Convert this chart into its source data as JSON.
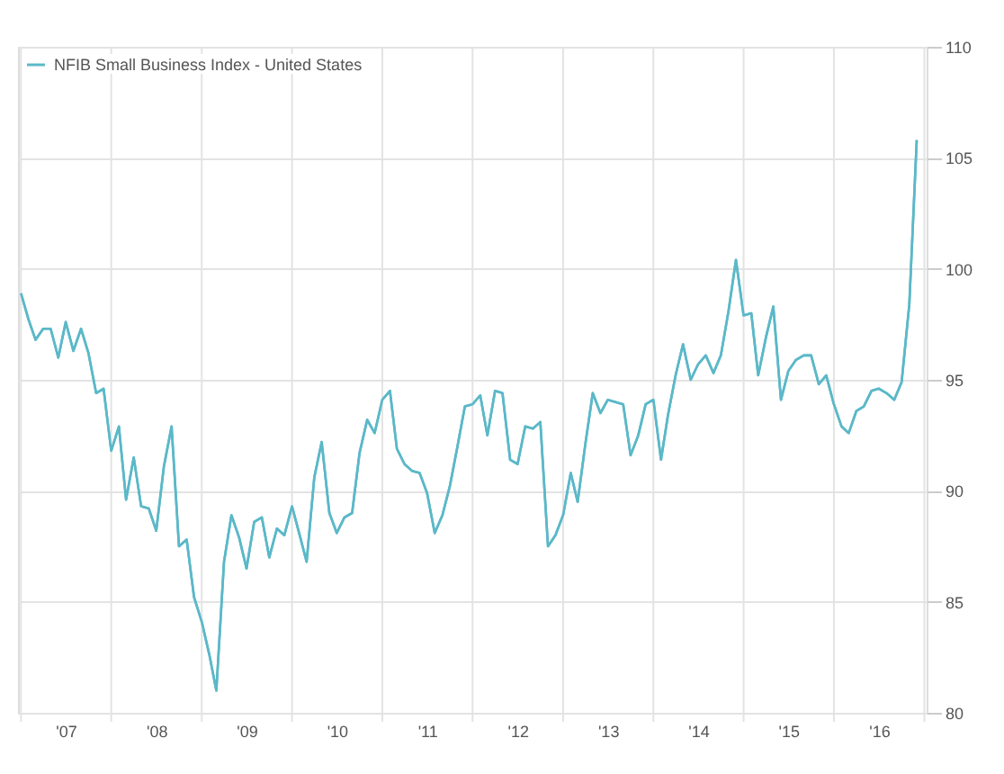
{
  "chart_data": {
    "type": "line",
    "x": [
      "2007-01",
      "2007-02",
      "2007-03",
      "2007-04",
      "2007-05",
      "2007-06",
      "2007-07",
      "2007-08",
      "2007-09",
      "2007-10",
      "2007-11",
      "2007-12",
      "2008-01",
      "2008-02",
      "2008-03",
      "2008-04",
      "2008-05",
      "2008-06",
      "2008-07",
      "2008-08",
      "2008-09",
      "2008-10",
      "2008-11",
      "2008-12",
      "2009-01",
      "2009-02",
      "2009-03",
      "2009-04",
      "2009-05",
      "2009-06",
      "2009-07",
      "2009-08",
      "2009-09",
      "2009-10",
      "2009-11",
      "2009-12",
      "2010-01",
      "2010-02",
      "2010-03",
      "2010-04",
      "2010-05",
      "2010-06",
      "2010-07",
      "2010-08",
      "2010-09",
      "2010-10",
      "2010-11",
      "2010-12",
      "2011-01",
      "2011-02",
      "2011-03",
      "2011-04",
      "2011-05",
      "2011-06",
      "2011-07",
      "2011-08",
      "2011-09",
      "2011-10",
      "2011-11",
      "2011-12",
      "2012-01",
      "2012-02",
      "2012-03",
      "2012-04",
      "2012-05",
      "2012-06",
      "2012-07",
      "2012-08",
      "2012-09",
      "2012-10",
      "2012-11",
      "2012-12",
      "2013-01",
      "2013-02",
      "2013-03",
      "2013-04",
      "2013-05",
      "2013-06",
      "2013-07",
      "2013-08",
      "2013-09",
      "2013-10",
      "2013-11",
      "2013-12",
      "2014-01",
      "2014-02",
      "2014-03",
      "2014-04",
      "2014-05",
      "2014-06",
      "2014-07",
      "2014-08",
      "2014-09",
      "2014-10",
      "2014-11",
      "2014-12",
      "2015-01",
      "2015-02",
      "2015-03",
      "2015-04",
      "2015-05",
      "2015-06",
      "2015-07",
      "2015-08",
      "2015-09",
      "2015-10",
      "2015-11",
      "2015-12",
      "2016-01",
      "2016-02",
      "2016-03",
      "2016-04",
      "2016-05",
      "2016-06",
      "2016-07",
      "2016-08",
      "2016-09",
      "2016-10",
      "2016-11",
      "2016-12"
    ],
    "series": [
      {
        "name": "NFIB Small Business Index - United States",
        "color": "#5bb8c8",
        "values": [
          98.9,
          97.7,
          96.8,
          97.3,
          97.3,
          96.0,
          97.6,
          96.3,
          97.3,
          96.2,
          94.4,
          94.6,
          91.8,
          92.9,
          89.6,
          91.5,
          89.3,
          89.2,
          88.2,
          91.1,
          92.9,
          87.5,
          87.8,
          85.2,
          84.1,
          82.6,
          81.0,
          86.8,
          88.9,
          87.9,
          86.5,
          88.6,
          88.8,
          87.0,
          88.3,
          88.0,
          89.3,
          88.0,
          86.8,
          90.6,
          92.2,
          89.0,
          88.1,
          88.8,
          89.0,
          91.7,
          93.2,
          92.6,
          94.1,
          94.5,
          91.9,
          91.2,
          90.9,
          90.8,
          89.9,
          88.1,
          88.9,
          90.2,
          92.0,
          93.8,
          93.9,
          94.3,
          92.5,
          94.5,
          94.4,
          91.4,
          91.2,
          92.9,
          92.8,
          93.1,
          87.5,
          88.0,
          88.9,
          90.8,
          89.5,
          92.1,
          94.4,
          93.5,
          94.1,
          94.0,
          93.9,
          91.6,
          92.5,
          93.9,
          94.1,
          91.4,
          93.4,
          95.2,
          96.6,
          95.0,
          95.7,
          96.1,
          95.3,
          96.1,
          98.1,
          100.4,
          97.9,
          98.0,
          95.2,
          96.9,
          98.3,
          94.1,
          95.4,
          95.9,
          96.1,
          96.1,
          94.8,
          95.2,
          93.9,
          92.9,
          92.6,
          93.6,
          93.8,
          94.5,
          94.6,
          94.4,
          94.1,
          94.9,
          98.4,
          105.8
        ]
      }
    ],
    "xlim": [
      "2006-12-20",
      "2017-01-10"
    ],
    "xticks": [
      {
        "value": "2007-01-01",
        "label": null
      },
      {
        "value": "2007-07-01",
        "label": "'07"
      },
      {
        "value": "2008-01-01",
        "label": null
      },
      {
        "value": "2008-07-01",
        "label": "'08"
      },
      {
        "value": "2009-01-01",
        "label": null
      },
      {
        "value": "2009-07-01",
        "label": "'09"
      },
      {
        "value": "2010-01-01",
        "label": null
      },
      {
        "value": "2010-07-01",
        "label": "'10"
      },
      {
        "value": "2011-01-01",
        "label": null
      },
      {
        "value": "2011-07-01",
        "label": "'11"
      },
      {
        "value": "2012-01-01",
        "label": null
      },
      {
        "value": "2012-07-01",
        "label": "'12"
      },
      {
        "value": "2013-01-01",
        "label": null
      },
      {
        "value": "2013-07-01",
        "label": "'13"
      },
      {
        "value": "2014-01-01",
        "label": null
      },
      {
        "value": "2014-07-01",
        "label": "'14"
      },
      {
        "value": "2015-01-01",
        "label": null
      },
      {
        "value": "2015-07-01",
        "label": "'15"
      },
      {
        "value": "2016-01-01",
        "label": null
      },
      {
        "value": "2016-07-01",
        "label": "'16"
      },
      {
        "value": "2017-01-01",
        "label": null
      }
    ],
    "ylim": [
      80,
      110
    ],
    "yticks": [
      80,
      85,
      90,
      95,
      100,
      105,
      110
    ],
    "grid": true,
    "legend": "top left",
    "marker": "none",
    "line_style": "solid"
  }
}
